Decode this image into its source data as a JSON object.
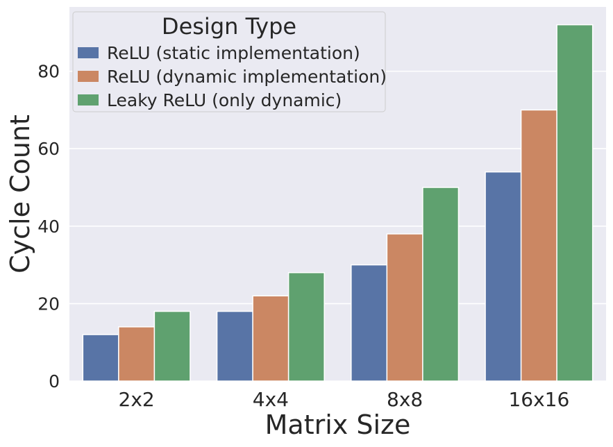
{
  "chart_data": {
    "type": "bar",
    "categories": [
      "2x2",
      "4x4",
      "8x8",
      "16x16"
    ],
    "series": [
      {
        "name": "ReLU (static implementation)",
        "values": [
          12,
          18,
          30,
          54
        ],
        "color": "#5874a6"
      },
      {
        "name": "ReLU (dynamic implementation)",
        "values": [
          14,
          22,
          38,
          70
        ],
        "color": "#cb8763"
      },
      {
        "name": "Leaky ReLU (only dynamic)",
        "values": [
          18,
          28,
          50,
          92
        ],
        "color": "#5fa16f"
      }
    ],
    "title": "",
    "xlabel": "Matrix Size",
    "ylabel": "Cycle Count",
    "ylim": [
      0,
      96.6
    ],
    "yticks": [
      0,
      20,
      40,
      60,
      80
    ],
    "ytick_labels": [
      "0",
      "20",
      "40",
      "60",
      "80"
    ],
    "legend_title": "Design Type",
    "legend_position": "top-left",
    "grid": true,
    "background_color": "#eaeaf2",
    "grid_color": "#ffffff"
  }
}
